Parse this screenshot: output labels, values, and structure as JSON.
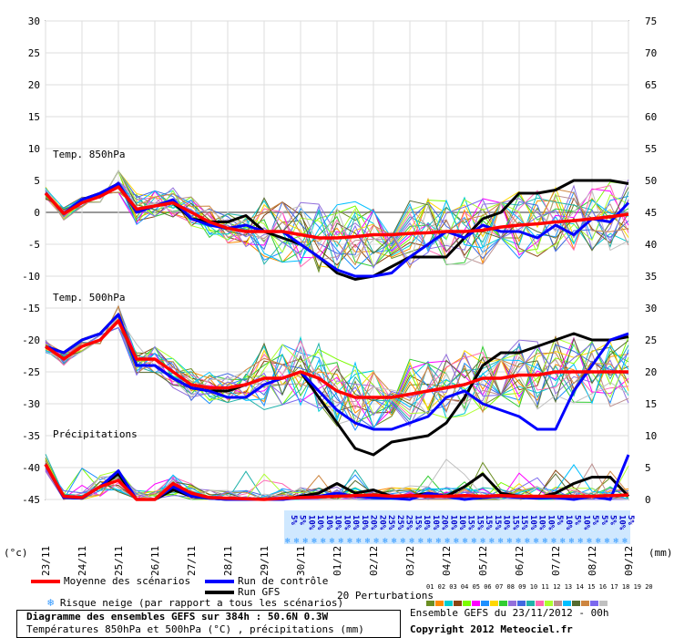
{
  "chart_data": {
    "type": "line",
    "x_dates": [
      "23/11",
      "24/11",
      "25/11",
      "26/11",
      "27/11",
      "28/11",
      "29/11",
      "30/11",
      "01/12",
      "02/12",
      "03/12",
      "04/12",
      "05/12",
      "06/12",
      "07/12",
      "08/12",
      "09/12"
    ],
    "left_axis_ticks": [
      30,
      25,
      20,
      15,
      10,
      5,
      0,
      -5,
      -10,
      -15,
      -20,
      -25,
      -30,
      -35,
      -40,
      -45
    ],
    "right_axis_ticks": [
      75,
      70,
      65,
      60,
      55,
      50,
      45,
      40,
      35,
      30,
      25,
      20,
      15,
      10,
      5,
      0
    ],
    "left_unit": "(°c)",
    "right_unit": "(mm)",
    "ylim": [
      -45,
      30
    ],
    "panels": [
      {
        "label": "Temp. 850hPa",
        "series": [
          {
            "name": "Moyenne des scénarios",
            "color": "#ff0000",
            "x": [
              0,
              0.5,
              1,
              1.5,
              2,
              2.5,
              3,
              3.5,
              4,
              4.5,
              5,
              5.5,
              6,
              6.5,
              7,
              7.5,
              8,
              8.5,
              9,
              9.5,
              10,
              10.5,
              11,
              11.5,
              12,
              12.5,
              13,
              13.5,
              14,
              14.5,
              15,
              15.5,
              16
            ],
            "values": [
              3,
              -0.2,
              1.5,
              2.5,
              4,
              0.5,
              1,
              1.5,
              0,
              -1.5,
              -2.5,
              -3,
              -3,
              -3,
              -3.5,
              -4,
              -4,
              -3.8,
              -3.5,
              -3.5,
              -3.3,
              -3.2,
              -3,
              -3,
              -2.8,
              -2.3,
              -2,
              -1.8,
              -1.5,
              -1.3,
              -1,
              -0.7,
              -0.3
            ]
          },
          {
            "name": "Run de contrôle",
            "color": "#0000ff",
            "x": [
              0,
              0.5,
              1,
              1.5,
              2,
              2.5,
              3,
              3.5,
              4,
              4.5,
              5,
              5.5,
              6,
              6.5,
              7,
              7.5,
              8,
              8.5,
              9,
              9.5,
              10,
              10.5,
              11,
              11.5,
              12,
              12.5,
              13,
              13.5,
              14,
              14.5,
              15,
              15.5,
              16
            ],
            "values": [
              3,
              -0.2,
              2,
              3,
              4.5,
              0,
              1,
              2,
              -1,
              -2,
              -2.5,
              -2,
              -3,
              -3,
              -5,
              -7,
              -9,
              -10,
              -10,
              -9.5,
              -7,
              -5,
              -3,
              -4,
              -2,
              -3,
              -3,
              -4,
              -2,
              -3.5,
              -1,
              -1.5,
              1.5
            ]
          },
          {
            "name": "Run GFS",
            "color": "#000000",
            "x": [
              0,
              0.5,
              1,
              1.5,
              2,
              2.5,
              3,
              3.5,
              4,
              4.5,
              5,
              5.5,
              6,
              6.5,
              7,
              7.5,
              8,
              8.5,
              9,
              9.5,
              10,
              10.5,
              11,
              11.5,
              12,
              12.5,
              13,
              13.5,
              14,
              14.5,
              15,
              15.5,
              16
            ],
            "values": [
              3,
              -0.2,
              2,
              3,
              4.5,
              0,
              1,
              1.5,
              -1,
              -1.5,
              -1.5,
              -0.5,
              -3,
              -4,
              -5,
              -7,
              -9.5,
              -10.5,
              -10,
              -8.5,
              -7,
              -7,
              -7,
              -4,
              -1,
              0,
              3,
              3,
              3.5,
              5,
              5,
              5,
              4.5
            ]
          }
        ]
      },
      {
        "label": "Temp. 500hPa",
        "series": [
          {
            "name": "Moyenne des scénarios",
            "color": "#ff0000",
            "x": [
              0,
              0.5,
              1,
              1.5,
              2,
              2.5,
              3,
              3.5,
              4,
              4.5,
              5,
              5.5,
              6,
              6.5,
              7,
              7.5,
              8,
              8.5,
              9,
              9.5,
              10,
              10.5,
              11,
              11.5,
              12,
              12.5,
              13,
              13.5,
              14,
              14.5,
              15,
              15.5,
              16
            ],
            "values": [
              -21,
              -23,
              -21,
              -20,
              -17,
              -23,
              -23,
              -25,
              -27,
              -27.5,
              -27.5,
              -27,
              -26,
              -26,
              -25,
              -26,
              -28,
              -29,
              -29,
              -29,
              -28.5,
              -28,
              -27.5,
              -27,
              -26,
              -26,
              -25.5,
              -25.5,
              -25,
              -25,
              -25,
              -25,
              -25
            ]
          },
          {
            "name": "Run de contrôle",
            "color": "#0000ff",
            "x": [
              0,
              0.5,
              1,
              1.5,
              2,
              2.5,
              3,
              3.5,
              4,
              4.5,
              5,
              5.5,
              6,
              6.5,
              7,
              7.5,
              8,
              8.5,
              9,
              9.5,
              10,
              10.5,
              11,
              11.5,
              12,
              12.5,
              13,
              13.5,
              14,
              14.5,
              15,
              15.5,
              16
            ],
            "values": [
              -21,
              -22,
              -20,
              -19,
              -16,
              -24,
              -24,
              -26,
              -27.5,
              -28,
              -29,
              -29,
              -27,
              -26,
              -25,
              -28,
              -31,
              -33,
              -34,
              -34,
              -33,
              -32,
              -29,
              -28,
              -30,
              -31,
              -32,
              -34,
              -34,
              -28,
              -24,
              -20,
              -19
            ]
          },
          {
            "name": "Run GFS",
            "color": "#000000",
            "x": [
              0,
              0.5,
              1,
              1.5,
              2,
              2.5,
              3,
              3.5,
              4,
              4.5,
              5,
              5.5,
              6,
              6.5,
              7,
              7.5,
              8,
              8.5,
              9,
              9.5,
              10,
              10.5,
              11,
              11.5,
              12,
              12.5,
              13,
              13.5,
              14,
              14.5,
              15,
              15.5,
              16
            ],
            "values": [
              -21,
              -22,
              -20,
              -19,
              -16,
              -24,
              -24,
              -26,
              -27.5,
              -28,
              -28,
              -27,
              -26,
              -26,
              -25,
              -29,
              -33,
              -37,
              -38,
              -36,
              -35.5,
              -35,
              -33,
              -29,
              -24,
              -22,
              -22,
              -21,
              -20,
              -19,
              -20,
              -20,
              -19.5
            ]
          }
        ]
      },
      {
        "label": "Précipitations",
        "series": [
          {
            "name": "Moyenne des scénarios",
            "color": "#ff0000",
            "x": [
              0,
              0.5,
              1,
              1.5,
              2,
              2.5,
              3,
              3.5,
              4,
              4.5,
              5,
              5.5,
              6,
              6.5,
              7,
              7.5,
              8,
              8.5,
              9,
              9.5,
              10,
              10.5,
              11,
              11.5,
              12,
              12.5,
              13,
              13.5,
              14,
              14.5,
              15,
              15.5,
              16
            ],
            "values": [
              5.5,
              0.5,
              0.3,
              2,
              3,
              0,
              0,
              2.5,
              1,
              0.3,
              0.2,
              0.1,
              0,
              0.2,
              0.3,
              0.4,
              0.5,
              0.6,
              0.7,
              0.5,
              0.6,
              0.5,
              0.5,
              0.6,
              0.5,
              0.6,
              0.5,
              0.5,
              0.5,
              0.5,
              0.5,
              0.6,
              0.7
            ]
          },
          {
            "name": "Run de contrôle",
            "color": "#0000ff",
            "x": [
              0,
              0.5,
              1,
              1.5,
              2,
              2.5,
              3,
              3.5,
              4,
              4.5,
              5,
              5.5,
              6,
              6.5,
              7,
              7.5,
              8,
              8.5,
              9,
              9.5,
              10,
              10.5,
              11,
              11.5,
              12,
              12.5,
              13,
              13.5,
              14,
              14.5,
              15,
              15.5,
              16
            ],
            "values": [
              5.5,
              0.3,
              0.2,
              2,
              4.5,
              0,
              0,
              2,
              0.5,
              0.2,
              0,
              0,
              0,
              0,
              0.3,
              0.5,
              1,
              0.5,
              0.3,
              0.2,
              0,
              1,
              0.5,
              0,
              0.3,
              0.5,
              0.3,
              0.2,
              0.3,
              0,
              0.5,
              0,
              7
            ]
          },
          {
            "name": "Run GFS",
            "color": "#000000",
            "x": [
              0,
              0.5,
              1,
              1.5,
              2,
              2.5,
              3,
              3.5,
              4,
              4.5,
              5,
              5.5,
              6,
              6.5,
              7,
              7.5,
              8,
              8.5,
              9,
              9.5,
              10,
              10.5,
              11,
              11.5,
              12,
              12.5,
              13,
              13.5,
              14,
              14.5,
              15,
              15.5,
              16
            ],
            "values": [
              5.5,
              0.3,
              0.2,
              2,
              4,
              0,
              0,
              1.5,
              0.5,
              0.2,
              0,
              0,
              0,
              0,
              0.5,
              1,
              2.5,
              1,
              1.5,
              0.5,
              0.5,
              1,
              0.5,
              2,
              4,
              1,
              0.5,
              0.3,
              1,
              2.5,
              3.5,
              3.5,
              0.5
            ]
          }
        ]
      }
    ],
    "snow_risk": {
      "labels": [
        "5%",
        "5%",
        "10%",
        "10%",
        "10%",
        "10%",
        "10%",
        "10%",
        "10%",
        "20%",
        "20%",
        "25%",
        "25%",
        "25%",
        "15%",
        "10%",
        "10%",
        "20%",
        "10%",
        "10%",
        "15%",
        "15%",
        "15%",
        "15%",
        "10%",
        "15%",
        "15%",
        "10%",
        "10%",
        "10%",
        "5%",
        "10%",
        "5%",
        "10%",
        "5%",
        "5%",
        "5%",
        "10%",
        "5%"
      ]
    },
    "perturbation_colors": [
      "#6b8e23",
      "#ff8c00",
      "#00ced1",
      "#8b4513",
      "#7cfc00",
      "#ff00ff",
      "#1e90ff",
      "#ffd700",
      "#32cd32",
      "#9370db",
      "#4169e1",
      "#20b2aa",
      "#ff69b4",
      "#adff2f",
      "#bc8f8f",
      "#00bfff",
      "#556b2f",
      "#cd853f",
      "#7b68ee",
      "#c0c0c0"
    ],
    "perturbation_numbers": "01 02 03 04 05 06 07 08 09 10 11 12 13 14 15 16 17 18 19 20"
  },
  "legend": {
    "mean": "Moyenne des scénarios",
    "control": "Run de contrôle",
    "gfs": "Run GFS",
    "snow": "Risque neige (par rapport a tous les scénarios)",
    "perturbations": "20 Perturbations",
    "mean_color": "#ff0000",
    "control_color": "#0000ff",
    "gfs_color": "#000000"
  },
  "info": {
    "title": "Diagramme des ensembles GEFS sur 384h : 50.6N 0.3W",
    "subtitle": "Températures 850hPa et 500hPa (°C) , précipitations (mm)",
    "ensemble": "Ensemble GEFS du 23/11/2012 - 00h",
    "copyright": "Copyright 2012 Meteociel.fr"
  }
}
